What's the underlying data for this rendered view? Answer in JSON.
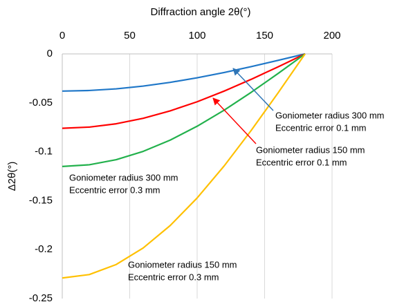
{
  "chart_data": {
    "type": "line",
    "title": "Diffraction angle 2θ(°)",
    "y_label": "Δ2θ(°)",
    "x": [
      0,
      20,
      40,
      60,
      80,
      100,
      120,
      140,
      160,
      180
    ],
    "series": [
      {
        "color": "#1f77c8",
        "values": [
          -0.038,
          -0.0374,
          -0.0357,
          -0.0329,
          -0.0291,
          -0.0244,
          -0.019,
          -0.013,
          -0.0066,
          0
        ]
      },
      {
        "color": "#ff0000",
        "values": [
          -0.076,
          -0.0748,
          -0.0714,
          -0.0658,
          -0.0582,
          -0.0489,
          -0.038,
          -0.026,
          -0.0132,
          0
        ]
      },
      {
        "color": "#22b14c",
        "values": [
          -0.115,
          -0.1133,
          -0.1081,
          -0.0996,
          -0.0881,
          -0.0739,
          -0.0575,
          -0.0393,
          -0.02,
          0
        ]
      },
      {
        "color": "#ffc000",
        "values": [
          -0.229,
          -0.2255,
          -0.2152,
          -0.1983,
          -0.1754,
          -0.1472,
          -0.1145,
          -0.0783,
          -0.0398,
          0
        ]
      }
    ],
    "annotations": [
      {
        "color": "#2e75b6",
        "lines": [
          "Goniometer radius 300 mm",
          "Eccentric error 0.1 mm"
        ]
      },
      {
        "color": "#ff0000",
        "lines": [
          "Goniometer radius 150 mm",
          "Eccentric error 0.1 mm"
        ]
      },
      {
        "color": "#22a84a",
        "lines": [
          "Goniometer radius 300 mm",
          "Eccentric error 0.3 mm"
        ]
      },
      {
        "color": "#bf9000",
        "lines": [
          "Goniometer radius 150 mm",
          "Eccentric error 0.3 mm"
        ]
      }
    ],
    "xlim": [
      0,
      200
    ],
    "xticks": [
      0,
      50,
      100,
      150,
      200
    ],
    "ylim": [
      -0.25,
      0
    ],
    "yticks": [
      0,
      -0.05,
      -0.1,
      -0.15,
      -0.2,
      -0.25
    ],
    "grid": "x",
    "x_axis_position": "top"
  }
}
